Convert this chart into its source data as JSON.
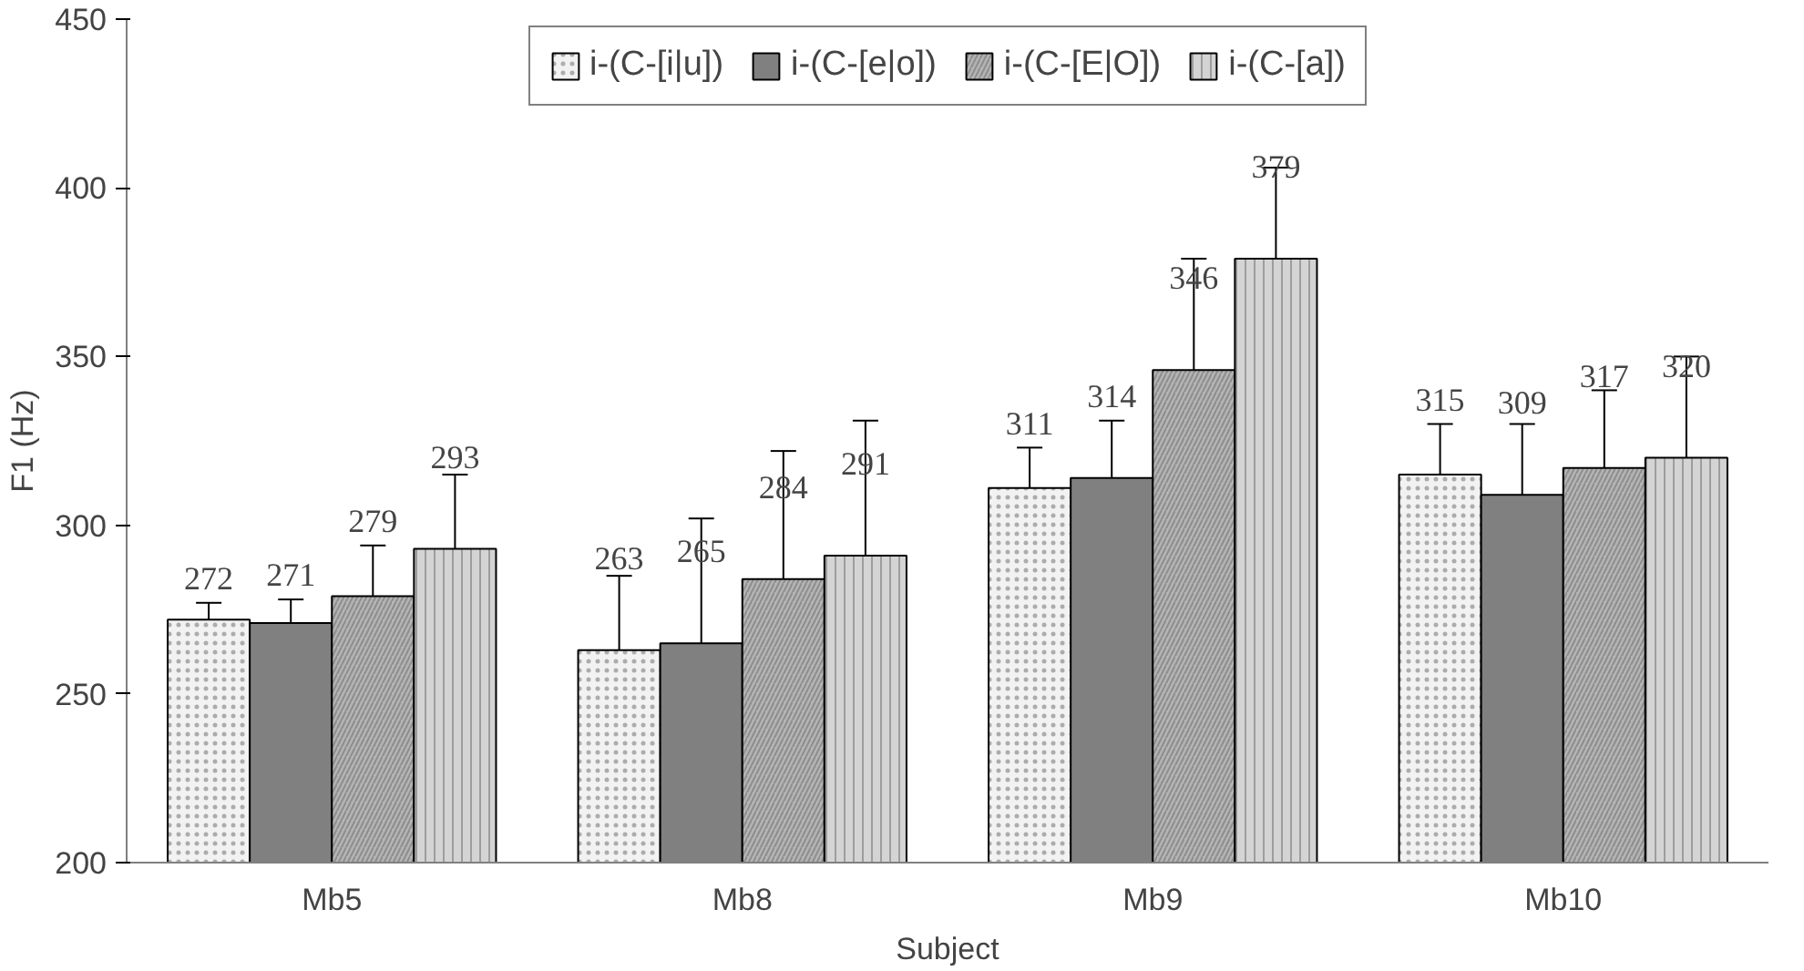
{
  "chart_data": {
    "type": "bar",
    "xlabel": "Subject",
    "ylabel": "F1 (Hz)",
    "categories": [
      "Mb5",
      "Mb8",
      "Mb9",
      "Mb10"
    ],
    "ylim": [
      200,
      450
    ],
    "yticks": [
      200,
      250,
      300,
      350,
      400,
      450
    ],
    "grid": false,
    "legend": "top",
    "data_labels": true,
    "series": [
      {
        "name": "i-(C-[i|u])",
        "color": "#f2f2f2",
        "values": [
          272,
          263,
          311,
          315
        ],
        "errors": [
          5,
          22,
          12,
          15
        ]
      },
      {
        "name": "i-(C-[e|o])",
        "color": "#808080",
        "values": [
          271,
          265,
          314,
          309
        ],
        "errors": [
          7,
          37,
          17,
          21
        ]
      },
      {
        "name": "i-(C-[E|O])",
        "color": "#b4b4b4",
        "values": [
          279,
          284,
          346,
          317
        ],
        "errors": [
          15,
          38,
          33,
          23
        ]
      },
      {
        "name": "i-(C-[a])",
        "color": "#d4d4d4",
        "values": [
          293,
          291,
          379,
          320
        ],
        "errors": [
          22,
          40,
          27,
          30
        ]
      }
    ]
  }
}
